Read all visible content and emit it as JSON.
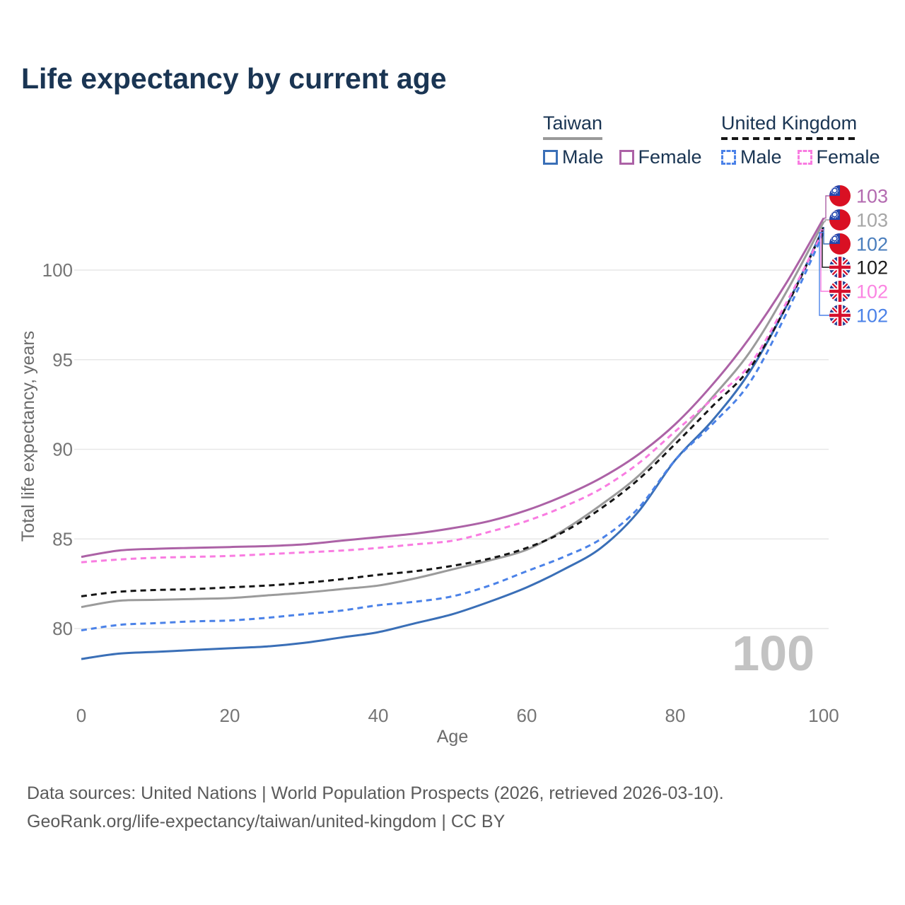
{
  "title": "Life expectancy by current age",
  "watermark": "100",
  "legend": {
    "groups": [
      {
        "label": "Taiwan",
        "line_style": "solid",
        "underline_color": "#999999",
        "items": [
          {
            "label": "Male",
            "color": "#3a6fb7",
            "dashed": false
          },
          {
            "label": "Female",
            "color": "#ac62a6",
            "dashed": false
          }
        ]
      },
      {
        "label": "United Kingdom",
        "line_style": "dashed",
        "underline_color": "#151515",
        "items": [
          {
            "label": "Male",
            "color": "#4b82e8",
            "dashed": true
          },
          {
            "label": "Female",
            "color": "#f97ce1",
            "dashed": true
          }
        ]
      }
    ]
  },
  "chart_data": {
    "type": "line",
    "title": "Life expectancy by current age",
    "xlabel": "Age",
    "ylabel": "Total life expectancy, years",
    "xlim": [
      0,
      100
    ],
    "ylim": [
      77,
      104.5
    ],
    "x_ticks": [
      0,
      20,
      40,
      60,
      80,
      100
    ],
    "y_ticks": [
      80,
      85,
      90,
      95,
      100
    ],
    "grid": "horizontal",
    "x": [
      0,
      5,
      10,
      15,
      20,
      25,
      30,
      35,
      40,
      45,
      50,
      55,
      60,
      65,
      70,
      75,
      80,
      85,
      90,
      95,
      100
    ],
    "series": [
      {
        "name": "Taiwan Female",
        "country": "Taiwan",
        "sex": "Female",
        "flag": "taiwan",
        "color": "#ac62a6",
        "dashed": false,
        "end_label": "103",
        "end_label_color": "#b36ab0",
        "values": [
          84.0,
          84.35,
          84.45,
          84.5,
          84.55,
          84.6,
          84.7,
          84.9,
          85.1,
          85.3,
          85.6,
          86.0,
          86.6,
          87.4,
          88.4,
          89.7,
          91.4,
          93.6,
          96.2,
          99.3,
          102.9
        ]
      },
      {
        "name": "Taiwan Total",
        "country": "Taiwan",
        "sex": "Total",
        "flag": "taiwan",
        "color": "#9b9b9b",
        "dashed": false,
        "end_label": "103",
        "end_label_color": "#a6a6a6",
        "values": [
          81.2,
          81.55,
          81.6,
          81.65,
          81.7,
          81.85,
          82.0,
          82.2,
          82.4,
          82.8,
          83.3,
          83.8,
          84.4,
          85.5,
          86.9,
          88.5,
          90.6,
          92.9,
          95.4,
          98.8,
          102.7
        ]
      },
      {
        "name": "Taiwan Male",
        "country": "Taiwan",
        "sex": "Male",
        "flag": "taiwan",
        "color": "#3a6fb7",
        "dashed": false,
        "end_label": "102",
        "end_label_color": "#4a7ebd",
        "values": [
          78.3,
          78.6,
          78.7,
          78.8,
          78.9,
          79.0,
          79.2,
          79.5,
          79.8,
          80.3,
          80.8,
          81.5,
          82.3,
          83.3,
          84.5,
          86.5,
          89.4,
          91.6,
          94.3,
          98.0,
          102.4
        ]
      },
      {
        "name": "United Kingdom Total",
        "country": "United Kingdom",
        "sex": "Total",
        "flag": "uk",
        "color": "#151515",
        "dashed": true,
        "end_label": "102",
        "end_label_color": "#1a1a1a",
        "values": [
          81.8,
          82.05,
          82.15,
          82.2,
          82.3,
          82.4,
          82.55,
          82.75,
          83.0,
          83.2,
          83.5,
          83.9,
          84.5,
          85.4,
          86.7,
          88.3,
          90.3,
          92.4,
          94.5,
          98.0,
          102.35
        ]
      },
      {
        "name": "United Kingdom Female",
        "country": "United Kingdom",
        "sex": "Female",
        "flag": "uk",
        "color": "#f97ce1",
        "dashed": true,
        "end_label": "102",
        "end_label_color": "#fb85e2",
        "values": [
          83.7,
          83.85,
          83.95,
          84.0,
          84.05,
          84.15,
          84.25,
          84.35,
          84.5,
          84.7,
          84.9,
          85.4,
          86.0,
          86.8,
          87.8,
          89.2,
          91.0,
          92.8,
          94.7,
          98.2,
          102.25
        ]
      },
      {
        "name": "United Kingdom Male",
        "country": "United Kingdom",
        "sex": "Male",
        "flag": "uk",
        "color": "#4b82e8",
        "dashed": true,
        "end_label": "102",
        "end_label_color": "#4b82e8",
        "values": [
          79.9,
          80.2,
          80.3,
          80.4,
          80.45,
          80.6,
          80.8,
          81.0,
          81.3,
          81.5,
          81.8,
          82.4,
          83.2,
          84.0,
          85.0,
          86.7,
          89.4,
          91.4,
          93.7,
          97.6,
          102.1
        ]
      }
    ]
  },
  "footer": {
    "line1": "Data sources: United Nations | World Population Prospects (2026, retrieved 2026-03-10).",
    "line2": "GeoRank.org/life-expectancy/taiwan/united-kingdom | CC BY"
  }
}
